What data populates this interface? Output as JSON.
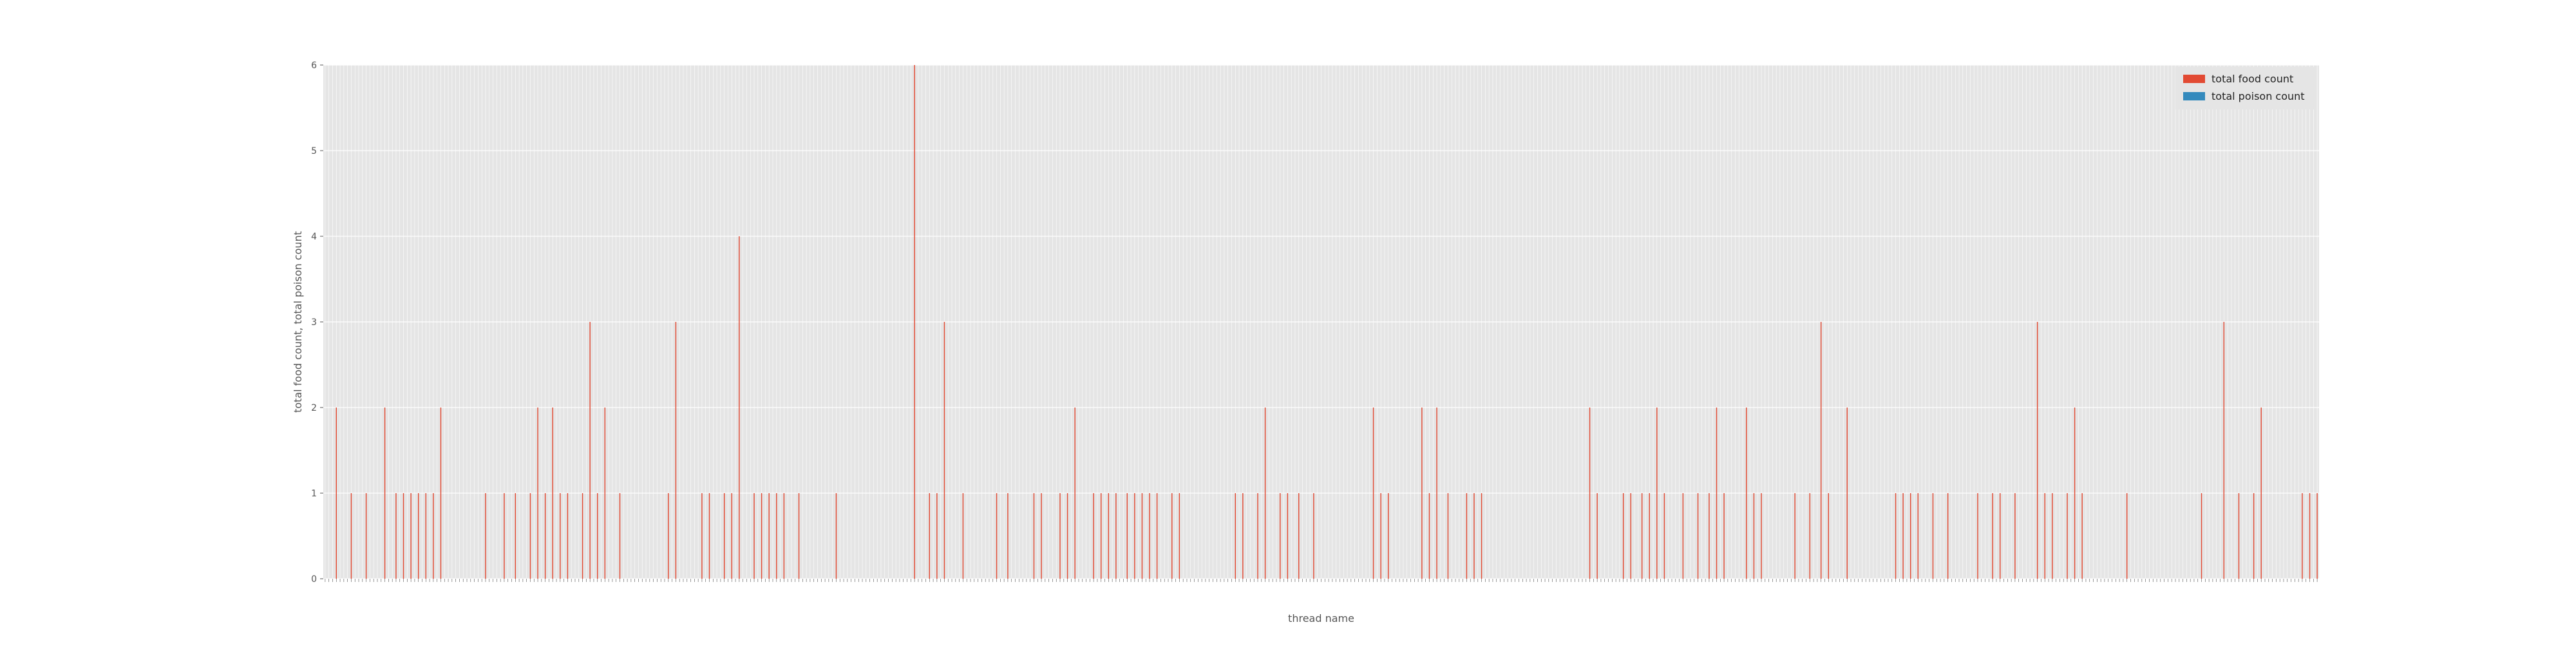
{
  "chart_data": {
    "type": "bar",
    "xlabel": "thread name",
    "ylabel": "total food count, total poison count",
    "ylim": [
      0,
      6
    ],
    "yticks": [
      "0",
      "1",
      "2",
      "3",
      "4",
      "5",
      "6"
    ],
    "grid": true,
    "legend_position": "top-right",
    "style": "ggplot",
    "categories_visible": false,
    "categories_note": "",
    "series": [
      {
        "name": "total food count",
        "color": "#E24A33",
        "values": [
          0,
          0,
          0,
          2,
          0,
          0,
          0,
          1,
          0,
          0,
          0,
          1,
          0,
          0,
          0,
          0,
          2,
          0,
          0,
          1,
          0,
          1,
          0,
          1,
          0,
          1,
          0,
          1,
          0,
          1,
          0,
          2,
          0,
          0,
          0,
          0,
          0,
          0,
          0,
          0,
          0,
          0,
          0,
          1,
          0,
          0,
          0,
          0,
          1,
          0,
          0,
          1,
          0,
          0,
          0,
          1,
          0,
          2,
          0,
          1,
          0,
          2,
          0,
          1,
          0,
          1,
          0,
          0,
          0,
          1,
          0,
          3,
          0,
          1,
          0,
          2,
          0,
          0,
          0,
          1,
          0,
          0,
          0,
          0,
          0,
          0,
          0,
          0,
          0,
          0,
          0,
          0,
          1,
          0,
          3,
          0,
          0,
          0,
          0,
          0,
          0,
          1,
          0,
          1,
          0,
          0,
          0,
          1,
          0,
          1,
          0,
          4,
          0,
          0,
          0,
          1,
          0,
          1,
          0,
          1,
          0,
          1,
          0,
          1,
          0,
          0,
          0,
          1,
          0,
          0,
          0,
          0,
          0,
          0,
          0,
          0,
          0,
          1,
          0,
          0,
          0,
          0,
          0,
          0,
          0,
          0,
          0,
          0,
          0,
          0,
          0,
          0,
          0,
          0,
          0,
          0,
          0,
          0,
          6,
          0,
          0,
          0,
          1,
          0,
          1,
          0,
          3,
          0,
          0,
          0,
          0,
          1,
          0,
          0,
          0,
          0,
          0,
          0,
          0,
          0,
          1,
          0,
          0,
          1,
          0,
          0,
          0,
          0,
          0,
          0,
          1,
          0,
          1,
          0,
          0,
          0,
          0,
          1,
          0,
          1,
          0,
          2,
          0,
          0,
          0,
          0,
          1,
          0,
          1,
          0,
          1,
          0,
          1,
          0,
          0,
          1,
          0,
          1,
          0,
          1,
          0,
          1,
          0,
          1,
          0,
          0,
          0,
          1,
          0,
          1,
          0,
          0,
          0,
          0,
          0,
          0,
          0,
          0,
          0,
          0,
          0,
          0,
          0,
          0,
          1,
          0,
          1,
          0,
          0,
          0,
          1,
          0,
          2,
          0,
          0,
          0,
          1,
          0,
          1,
          0,
          0,
          1,
          0,
          0,
          0,
          1,
          0,
          0,
          0,
          0,
          0,
          0,
          0,
          0,
          0,
          0,
          0,
          0,
          0,
          0,
          0,
          2,
          0,
          1,
          0,
          1,
          0,
          0,
          0,
          0,
          0,
          0,
          0,
          0,
          2,
          0,
          1,
          0,
          2,
          0,
          0,
          1,
          0,
          0,
          0,
          0,
          1,
          0,
          1,
          0,
          1,
          0,
          0,
          0,
          0,
          0,
          0,
          0,
          0,
          0,
          0,
          0,
          0,
          0,
          0,
          0,
          0,
          0,
          0,
          0,
          0,
          0,
          0,
          0,
          0,
          0,
          0,
          0,
          0,
          2,
          0,
          1,
          0,
          0,
          0,
          0,
          0,
          0,
          1,
          0,
          1,
          0,
          0,
          1,
          0,
          1,
          0,
          2,
          0,
          1,
          0,
          0,
          0,
          0,
          1,
          0,
          0,
          0,
          1,
          0,
          0,
          1,
          0,
          2,
          0,
          1,
          0,
          0,
          0,
          0,
          0,
          2,
          0,
          1,
          0,
          1,
          0,
          0,
          0,
          0,
          0,
          0,
          0,
          0,
          1,
          0,
          0,
          0,
          1,
          0,
          0,
          3,
          0,
          1,
          0,
          0,
          0,
          0,
          2,
          0,
          0,
          0,
          0,
          0,
          0,
          0,
          0,
          0,
          0,
          0,
          0,
          1,
          0,
          1,
          0,
          1,
          0,
          1,
          0,
          0,
          0,
          1,
          0,
          0,
          0,
          1,
          0,
          0,
          0,
          0,
          0,
          0,
          0,
          1,
          0,
          0,
          0,
          1,
          0,
          1,
          0,
          0,
          0,
          1,
          0,
          0,
          0,
          0,
          0,
          3,
          0,
          1,
          0,
          1,
          0,
          0,
          0,
          1,
          0,
          2,
          0,
          1,
          0,
          0,
          0,
          0,
          0,
          0,
          0,
          0,
          0,
          0,
          0,
          1,
          0,
          0,
          0,
          0,
          0,
          0,
          0,
          0,
          0,
          0,
          0,
          0,
          0,
          0,
          0,
          0,
          0,
          0,
          0,
          1,
          0,
          0,
          0,
          0,
          0,
          3,
          0,
          0,
          0,
          1,
          0,
          0,
          0,
          1,
          0,
          2,
          0,
          0,
          0,
          0,
          0,
          0,
          0,
          0,
          0,
          0,
          1,
          0,
          1,
          0,
          1
        ]
      },
      {
        "name": "total poison count",
        "color": "#348ABD",
        "values": []
      }
    ]
  }
}
